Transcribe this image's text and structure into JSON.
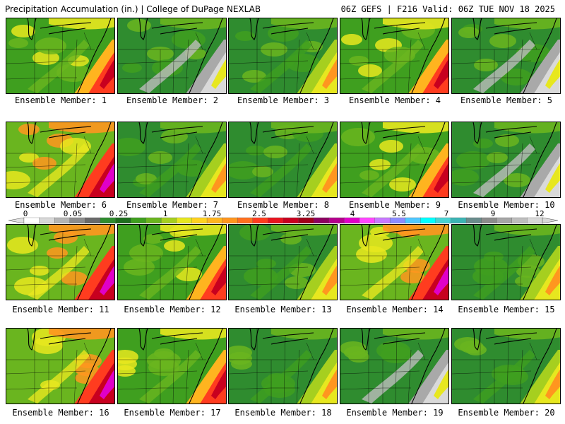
{
  "header": {
    "left_title": "Precipitation Accumulation (in.) | College of DuPage NEXLAB",
    "right_title": "06Z GEFS | F216 Valid: 06Z TUE NOV 18 2025"
  },
  "members": [
    {
      "label": "Ensemble Member: 1",
      "style": "heavy"
    },
    {
      "label": "Ensemble Member: 2",
      "style": "dry"
    },
    {
      "label": "Ensemble Member: 3",
      "style": "moderate"
    },
    {
      "label": "Ensemble Member: 4",
      "style": "heavy"
    },
    {
      "label": "Ensemble Member: 5",
      "style": "dry"
    },
    {
      "label": "Ensemble Member: 6",
      "style": "extreme"
    },
    {
      "label": "Ensemble Member: 7",
      "style": "moderate"
    },
    {
      "label": "Ensemble Member: 8",
      "style": "moderate"
    },
    {
      "label": "Ensemble Member: 9",
      "style": "heavy"
    },
    {
      "label": "Ensemble Member: 10",
      "style": "dry"
    },
    {
      "label": "Ensemble Member: 11",
      "style": "extreme"
    },
    {
      "label": "Ensemble Member: 12",
      "style": "heavy"
    },
    {
      "label": "Ensemble Member: 13",
      "style": "moderate"
    },
    {
      "label": "Ensemble Member: 14",
      "style": "extreme"
    },
    {
      "label": "Ensemble Member: 15",
      "style": "moderate"
    },
    {
      "label": "Ensemble Member: 16",
      "style": "extreme"
    },
    {
      "label": "Ensemble Member: 17",
      "style": "heavy"
    },
    {
      "label": "Ensemble Member: 18",
      "style": "moderate"
    },
    {
      "label": "Ensemble Member: 19",
      "style": "dry"
    },
    {
      "label": "Ensemble Member: 20",
      "style": "moderate"
    }
  ],
  "legend": {
    "unit": "in.",
    "tick_labels": [
      "0",
      "0.05",
      "0.25",
      "1",
      "1.75",
      "2.5",
      "3.25",
      "4",
      "5.5",
      "7",
      "9",
      "12"
    ],
    "colors": [
      "#ffffff",
      "#d8d8d8",
      "#b4b4b4",
      "#8c8c8c",
      "#6a6a6a",
      "#2f8c2f",
      "#1f6e1f",
      "#3f9f1f",
      "#6ab51f",
      "#a6cf1f",
      "#e7e71f",
      "#ffd21f",
      "#ffb41f",
      "#ff961f",
      "#ff701f",
      "#ff3c1f",
      "#e8141f",
      "#c8001f",
      "#a0001a",
      "#8c0060",
      "#b4008c",
      "#e000c8",
      "#ff46ff",
      "#c878ff",
      "#8c8cff",
      "#50c8ff",
      "#00ffff",
      "#48d2d2",
      "#3cb4b4",
      "#6a8c8c",
      "#8c8c8c",
      "#a6a6a6",
      "#bebebe",
      "#d8d8d8"
    ]
  }
}
